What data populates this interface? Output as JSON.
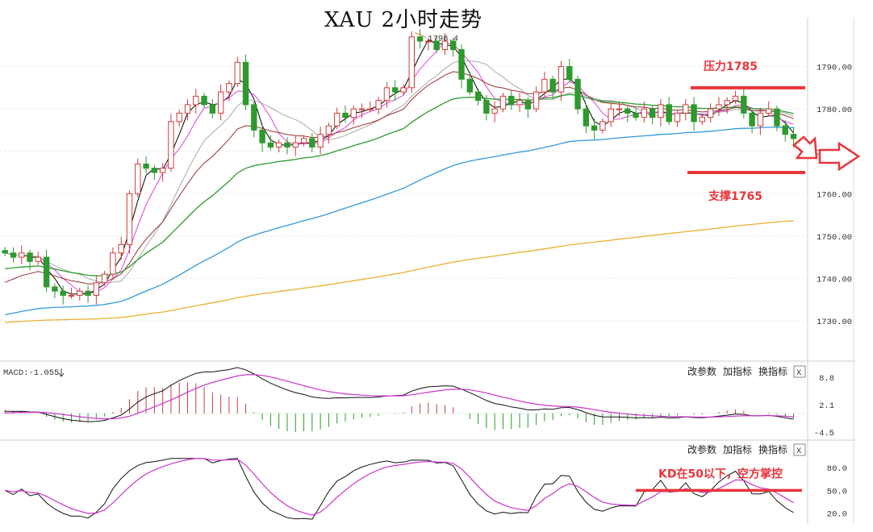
{
  "title": "XAU 2小时走势",
  "chart_data": [
    {
      "type": "candlestick",
      "title": "XAU 2小时走势",
      "ylim": [
        1722,
        1800
      ],
      "y_ticks": [
        1730,
        1740,
        1750,
        1760,
        1770,
        1780,
        1790
      ],
      "y_tick_labels": [
        "1730.00",
        "1740.00",
        "1750.00",
        "1760.00",
        "1770.00",
        "1780.00",
        "1790.00"
      ],
      "close": [
        1746,
        1745,
        1746,
        1744,
        1745,
        1738,
        1737,
        1736,
        1736,
        1737,
        1736,
        1739,
        1741,
        1746,
        1748,
        1760,
        1767,
        1766,
        1765,
        1766,
        1777,
        1779,
        1781,
        1783,
        1781,
        1779,
        1784,
        1786,
        1791,
        1781,
        1775,
        1772,
        1771,
        1772,
        1771,
        1772,
        1773,
        1771,
        1774,
        1776,
        1779,
        1778,
        1780,
        1780,
        1780,
        1782,
        1785,
        1784,
        1785,
        1797,
        1796,
        1796,
        1794,
        1796,
        1794,
        1787,
        1784,
        1782,
        1779,
        1780,
        1783,
        1781,
        1782,
        1780,
        1784,
        1787,
        1784,
        1790,
        1787,
        1780,
        1776,
        1775,
        1777,
        1780,
        1780,
        1779,
        1778,
        1780,
        1778,
        1781,
        1777,
        1779,
        1781,
        1777,
        1778,
        1780,
        1781,
        1782,
        1783,
        1779,
        1776,
        1779,
        1780,
        1776,
        1774,
        1773
      ],
      "annotations": {
        "peak_label": "1798.4",
        "resistance_label": "压力1785",
        "resistance_value": 1785,
        "support_label": "支撑1765",
        "support_value": 1765
      },
      "ma_lines_colors": [
        "#000000",
        "#dd44dd",
        "#aaaaaa",
        "#993333",
        "#2c9a2c",
        "#3399dd",
        "#e8b030"
      ]
    },
    {
      "type": "macd",
      "label": "MACD:-1.055",
      "ylim": [
        -6.5,
        10
      ],
      "y_ticks": [
        8.8,
        2.1,
        -4.5
      ],
      "y_tick_labels": [
        "8.8",
        "2.1",
        "-4.5"
      ]
    },
    {
      "type": "kd",
      "ylim": [
        10,
        95
      ],
      "y_ticks": [
        80,
        50,
        20
      ],
      "y_tick_labels": [
        "80.0",
        "50.0",
        "20.0"
      ],
      "annotation": "KD在50以下，空方掌控",
      "level_line": 50
    }
  ],
  "panel_buttons": {
    "params": "改参数",
    "indicator": "加指标",
    "switch": "换指标",
    "close": "X"
  },
  "colors": {
    "up": "#d03c3c",
    "down": "#2c9a2c",
    "annotation": "#e8353a"
  }
}
